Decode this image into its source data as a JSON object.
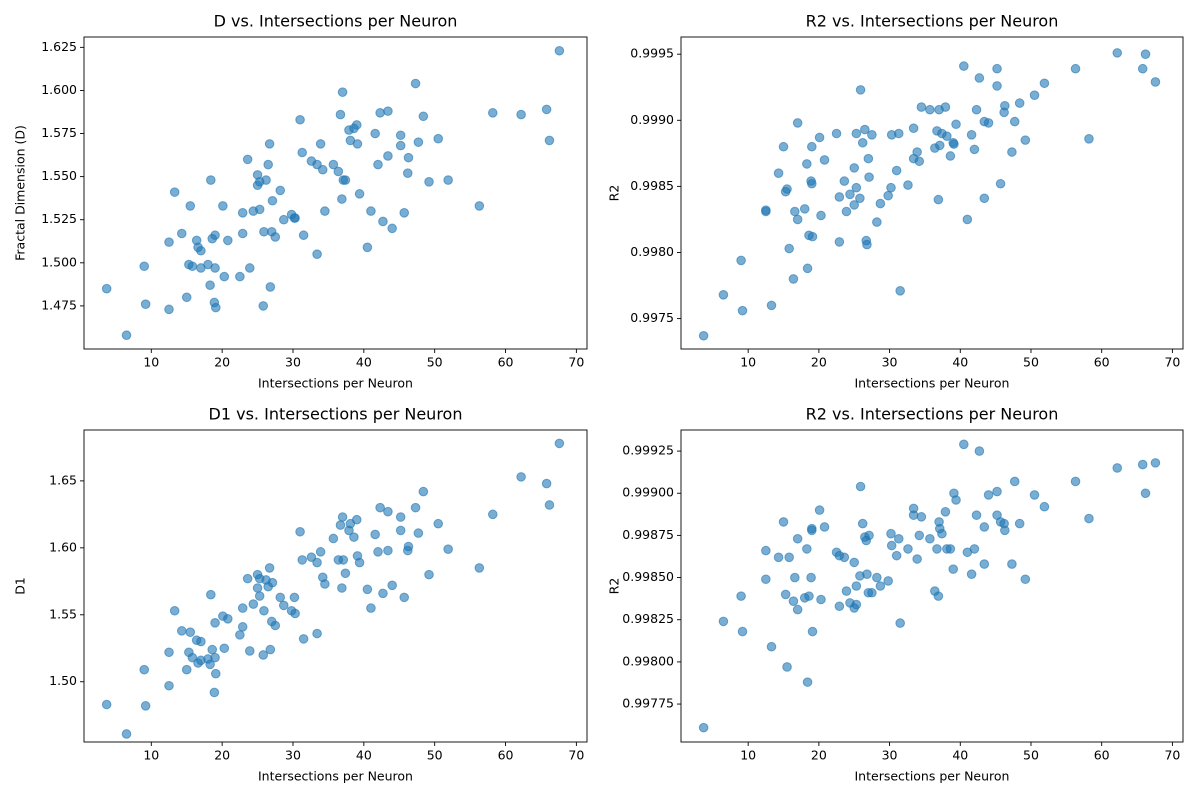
{
  "chart_data": [
    {
      "type": "scatter",
      "title": "D vs. Intersections per Neuron",
      "x_label": "Intersections per Neuron",
      "y_label": "Fractal Dimension (D)",
      "color": "#1f77b4",
      "xlim": [
        0.5,
        71.5
      ],
      "xticks": [
        10,
        20,
        30,
        40,
        50,
        60,
        70
      ],
      "ylim": [
        1.45,
        1.631
      ],
      "yticks": [
        1.475,
        {
          "value": 1.5,
          "label": "1.500"
        },
        1.525,
        {
          "value": 1.55,
          "label": "1.550"
        },
        1.575,
        {
          "value": 1.6,
          "label": "1.600"
        },
        1.625
      ],
      "x": [
        3.7,
        6.5,
        9.0,
        9.2,
        12.5,
        12.5,
        13.3,
        14.3,
        15.0,
        15.3,
        15.5,
        15.8,
        16.4,
        16.6,
        17.0,
        17.0,
        18.0,
        18.3,
        18.4,
        18.6,
        18.9,
        19.0,
        19.1,
        19.0,
        20.1,
        20.3,
        20.8,
        22.5,
        22.9,
        22.9,
        23.6,
        23.9,
        24.4,
        25.0,
        25.0,
        25.3,
        25.3,
        25.9,
        25.8,
        26.2,
        26.5,
        26.7,
        26.8,
        27.0,
        27.1,
        27.5,
        28.2,
        28.7,
        29.8,
        30.2,
        30.3,
        31.0,
        31.3,
        31.5,
        32.6,
        33.4,
        33.4,
        33.9,
        34.2,
        34.5,
        35.7,
        36.4,
        36.7,
        36.9,
        37.0,
        37.1,
        37.4,
        37.9,
        38.1,
        38.6,
        39.0,
        39.1,
        39.4,
        40.5,
        41.0,
        41.6,
        42.0,
        42.3,
        42.7,
        43.4,
        43.4,
        44.0,
        45.2,
        45.2,
        45.7,
        46.2,
        46.3,
        47.3,
        47.7,
        48.4,
        49.2,
        50.5,
        51.9,
        56.3,
        58.2,
        62.2,
        65.8,
        66.2,
        67.6
      ],
      "y": [
        1.485,
        1.458,
        1.498,
        1.476,
        1.512,
        1.473,
        1.541,
        1.517,
        1.48,
        1.499,
        1.533,
        1.498,
        1.513,
        1.509,
        1.497,
        1.507,
        1.499,
        1.487,
        1.548,
        1.514,
        1.477,
        1.516,
        1.474,
        1.497,
        1.533,
        1.492,
        1.513,
        1.492,
        1.517,
        1.529,
        1.56,
        1.497,
        1.53,
        1.545,
        1.551,
        1.531,
        1.547,
        1.518,
        1.475,
        1.548,
        1.557,
        1.569,
        1.486,
        1.518,
        1.536,
        1.515,
        1.542,
        1.525,
        1.528,
        1.526,
        1.526,
        1.583,
        1.564,
        1.516,
        1.559,
        1.557,
        1.505,
        1.569,
        1.554,
        1.53,
        1.557,
        1.553,
        1.586,
        1.537,
        1.599,
        1.548,
        1.548,
        1.577,
        1.571,
        1.578,
        1.58,
        1.569,
        1.54,
        1.509,
        1.53,
        1.575,
        1.557,
        1.587,
        1.524,
        1.588,
        1.562,
        1.52,
        1.574,
        1.568,
        1.529,
        1.552,
        1.561,
        1.604,
        1.57,
        1.585,
        1.547,
        1.572,
        1.548,
        1.533,
        1.587,
        1.586,
        1.589,
        1.571,
        1.623
      ]
    },
    {
      "type": "scatter",
      "title": "R2 vs. Intersections per Neuron",
      "x_label": "Intersections per Neuron",
      "y_label": "R2",
      "color": "#1f77b4",
      "xlim": [
        0.5,
        71.5
      ],
      "xticks": [
        10,
        20,
        30,
        40,
        50,
        60,
        70
      ],
      "ylim": [
        0.99727,
        0.99963
      ],
      "yticks": [
        0.9975,
        {
          "value": 0.998,
          "label": "0.9980"
        },
        0.9985,
        {
          "value": 0.999,
          "label": "0.9990"
        },
        0.9995
      ],
      "x": [
        3.7,
        6.5,
        9.0,
        9.2,
        12.5,
        12.5,
        13.3,
        14.3,
        15.0,
        15.3,
        15.5,
        15.8,
        16.4,
        16.6,
        17.0,
        17.0,
        18.0,
        18.3,
        18.4,
        18.6,
        18.9,
        19.0,
        19.1,
        19.0,
        20.1,
        20.3,
        20.8,
        22.5,
        22.9,
        22.9,
        23.6,
        23.9,
        24.4,
        25.0,
        25.0,
        25.3,
        25.3,
        25.9,
        25.8,
        26.2,
        26.5,
        26.7,
        26.8,
        27.0,
        27.1,
        27.5,
        28.2,
        28.7,
        29.8,
        30.2,
        30.3,
        31.0,
        31.3,
        31.5,
        32.6,
        33.4,
        33.4,
        33.9,
        34.2,
        34.5,
        35.7,
        36.4,
        36.7,
        36.9,
        37.0,
        37.1,
        37.4,
        37.9,
        38.1,
        38.6,
        39.0,
        39.1,
        39.4,
        40.5,
        41.0,
        41.6,
        42.0,
        42.3,
        42.7,
        43.4,
        43.4,
        44.0,
        45.2,
        45.2,
        45.7,
        46.2,
        46.3,
        47.3,
        47.7,
        48.4,
        49.2,
        50.5,
        51.9,
        56.3,
        58.2,
        62.2,
        65.8,
        66.2,
        67.6
      ],
      "y": [
        0.99737,
        0.99768,
        0.99794,
        0.99756,
        0.99831,
        0.99832,
        0.9976,
        0.9986,
        0.9988,
        0.99846,
        0.99848,
        0.99803,
        0.9978,
        0.99831,
        0.99898,
        0.99825,
        0.99833,
        0.99867,
        0.99788,
        0.99813,
        0.99854,
        0.99852,
        0.99812,
        0.9988,
        0.99887,
        0.99828,
        0.9987,
        0.9989,
        0.99808,
        0.99842,
        0.99854,
        0.99831,
        0.99844,
        0.99864,
        0.99836,
        0.9989,
        0.99849,
        0.99923,
        0.99841,
        0.99883,
        0.99893,
        0.99809,
        0.99806,
        0.99871,
        0.99857,
        0.99889,
        0.99823,
        0.99837,
        0.99843,
        0.99849,
        0.99889,
        0.99862,
        0.9989,
        0.99771,
        0.99851,
        0.99894,
        0.99871,
        0.99876,
        0.99869,
        0.9991,
        0.99908,
        0.99879,
        0.99892,
        0.9984,
        0.99908,
        0.99881,
        0.9989,
        0.9991,
        0.99888,
        0.99873,
        0.99883,
        0.99882,
        0.99897,
        0.99941,
        0.99825,
        0.99889,
        0.99878,
        0.99908,
        0.99932,
        0.99899,
        0.99841,
        0.99898,
        0.99939,
        0.99926,
        0.99852,
        0.99906,
        0.99911,
        0.99876,
        0.99899,
        0.99913,
        0.99885,
        0.99919,
        0.99928,
        0.99939,
        0.99886,
        0.99951,
        0.99939,
        0.9995,
        0.99929
      ]
    },
    {
      "type": "scatter",
      "title": "D1 vs. Intersections per Neuron",
      "x_label": "Intersections per Neuron",
      "y_label": "D1",
      "color": "#1f77b4",
      "xlim": [
        0.5,
        71.5
      ],
      "xticks": [
        10,
        20,
        30,
        40,
        50,
        60,
        70
      ],
      "ylim": [
        1.455,
        1.688
      ],
      "yticks": [
        {
          "value": 1.5,
          "label": "1.50"
        },
        1.55,
        {
          "value": 1.6,
          "label": "1.60"
        },
        1.65
      ],
      "x": [
        3.7,
        6.5,
        9.0,
        9.2,
        12.5,
        12.5,
        13.3,
        14.3,
        15.0,
        15.3,
        15.5,
        15.8,
        16.4,
        16.6,
        17.0,
        17.0,
        18.0,
        18.3,
        18.4,
        18.6,
        18.9,
        19.0,
        19.1,
        19.0,
        20.1,
        20.3,
        20.8,
        22.5,
        22.9,
        22.9,
        23.6,
        23.9,
        24.4,
        25.0,
        25.0,
        25.3,
        25.3,
        25.9,
        25.8,
        26.2,
        26.5,
        26.7,
        26.8,
        27.0,
        27.1,
        27.5,
        28.2,
        28.7,
        29.8,
        30.2,
        30.3,
        31.0,
        31.3,
        31.5,
        32.6,
        33.4,
        33.4,
        33.9,
        34.2,
        34.5,
        35.7,
        36.4,
        36.7,
        36.9,
        37.0,
        37.1,
        37.4,
        37.9,
        38.1,
        38.6,
        39.0,
        39.1,
        39.4,
        40.5,
        41.0,
        41.6,
        42.0,
        42.3,
        42.7,
        43.4,
        43.4,
        44.0,
        45.2,
        45.2,
        45.7,
        46.2,
        46.3,
        47.3,
        47.7,
        48.4,
        49.2,
        50.5,
        51.9,
        56.3,
        58.2,
        62.2,
        65.8,
        66.2,
        67.6
      ],
      "y": [
        1.483,
        1.461,
        1.509,
        1.482,
        1.522,
        1.497,
        1.553,
        1.538,
        1.509,
        1.522,
        1.537,
        1.518,
        1.531,
        1.514,
        1.53,
        1.516,
        1.517,
        1.513,
        1.565,
        1.524,
        1.492,
        1.544,
        1.506,
        1.518,
        1.549,
        1.525,
        1.547,
        1.535,
        1.541,
        1.555,
        1.577,
        1.523,
        1.558,
        1.58,
        1.57,
        1.564,
        1.577,
        1.553,
        1.52,
        1.576,
        1.571,
        1.585,
        1.524,
        1.545,
        1.574,
        1.542,
        1.563,
        1.557,
        1.553,
        1.563,
        1.551,
        1.612,
        1.591,
        1.532,
        1.593,
        1.589,
        1.536,
        1.597,
        1.578,
        1.573,
        1.607,
        1.591,
        1.617,
        1.57,
        1.623,
        1.591,
        1.581,
        1.613,
        1.618,
        1.608,
        1.621,
        1.594,
        1.589,
        1.569,
        1.555,
        1.61,
        1.597,
        1.63,
        1.566,
        1.627,
        1.598,
        1.572,
        1.623,
        1.613,
        1.563,
        1.598,
        1.601,
        1.63,
        1.611,
        1.642,
        1.58,
        1.618,
        1.599,
        1.585,
        1.625,
        1.653,
        1.648,
        1.632,
        1.678
      ]
    },
    {
      "type": "scatter",
      "title": "R2 vs. Intersections per Neuron",
      "x_label": "Intersections per Neuron",
      "y_label": "R2",
      "color": "#1f77b4",
      "xlim": [
        0.5,
        71.5
      ],
      "xticks": [
        10,
        20,
        30,
        40,
        50,
        60,
        70
      ],
      "ylim": [
        0.997525,
        0.999375
      ],
      "yticks": [
        0.99775,
        {
          "value": 0.998,
          "label": "0.99800"
        },
        0.99825,
        {
          "value": 0.9985,
          "label": "0.99850"
        },
        0.99875,
        {
          "value": 0.999,
          "label": "0.99900"
        },
        0.99925
      ],
      "x": [
        3.7,
        6.5,
        9.0,
        9.2,
        12.5,
        12.5,
        13.3,
        14.3,
        15.0,
        15.3,
        15.5,
        15.8,
        16.4,
        16.6,
        17.0,
        17.0,
        18.0,
        18.3,
        18.4,
        18.6,
        18.9,
        19.0,
        19.1,
        19.0,
        20.1,
        20.3,
        20.8,
        22.5,
        22.9,
        22.9,
        23.6,
        23.9,
        24.4,
        25.0,
        25.0,
        25.3,
        25.3,
        25.9,
        25.8,
        26.2,
        26.5,
        26.7,
        26.8,
        27.0,
        27.1,
        27.5,
        28.2,
        28.7,
        29.8,
        30.2,
        30.3,
        31.0,
        31.3,
        31.5,
        32.6,
        33.4,
        33.4,
        33.9,
        34.2,
        34.5,
        35.7,
        36.4,
        36.7,
        36.9,
        37.0,
        37.1,
        37.4,
        37.9,
        38.1,
        38.6,
        39.0,
        39.1,
        39.4,
        40.5,
        41.0,
        41.6,
        42.0,
        42.3,
        42.7,
        43.4,
        43.4,
        44.0,
        45.2,
        45.2,
        45.7,
        46.2,
        46.3,
        47.3,
        47.7,
        48.4,
        49.2,
        50.5,
        51.9,
        56.3,
        58.2,
        62.2,
        65.8,
        66.2,
        67.6
      ],
      "y": [
        0.99761,
        0.99824,
        0.99839,
        0.99818,
        0.99866,
        0.99849,
        0.99809,
        0.99862,
        0.99883,
        0.9984,
        0.99797,
        0.99862,
        0.99836,
        0.9985,
        0.99873,
        0.99831,
        0.99838,
        0.99867,
        0.99788,
        0.99839,
        0.9985,
        0.99879,
        0.99818,
        0.99878,
        0.9989,
        0.99837,
        0.9988,
        0.99865,
        0.99863,
        0.99833,
        0.99862,
        0.99842,
        0.99835,
        0.99859,
        0.99832,
        0.99834,
        0.99845,
        0.99904,
        0.99851,
        0.99882,
        0.99874,
        0.99872,
        0.99852,
        0.99841,
        0.99875,
        0.99841,
        0.9985,
        0.99845,
        0.99848,
        0.99876,
        0.99869,
        0.99863,
        0.99873,
        0.99823,
        0.99867,
        0.99891,
        0.99887,
        0.99861,
        0.99875,
        0.99886,
        0.99873,
        0.99842,
        0.99867,
        0.99839,
        0.99883,
        0.99879,
        0.99876,
        0.99889,
        0.99867,
        0.99867,
        0.99855,
        0.999,
        0.99896,
        0.99929,
        0.99865,
        0.99852,
        0.99867,
        0.99887,
        0.99925,
        0.9988,
        0.99858,
        0.99899,
        0.99901,
        0.99887,
        0.99883,
        0.99882,
        0.99878,
        0.99858,
        0.99907,
        0.99882,
        0.99849,
        0.99899,
        0.99892,
        0.99907,
        0.99885,
        0.99915,
        0.99917,
        0.999,
        0.99918
      ]
    }
  ]
}
